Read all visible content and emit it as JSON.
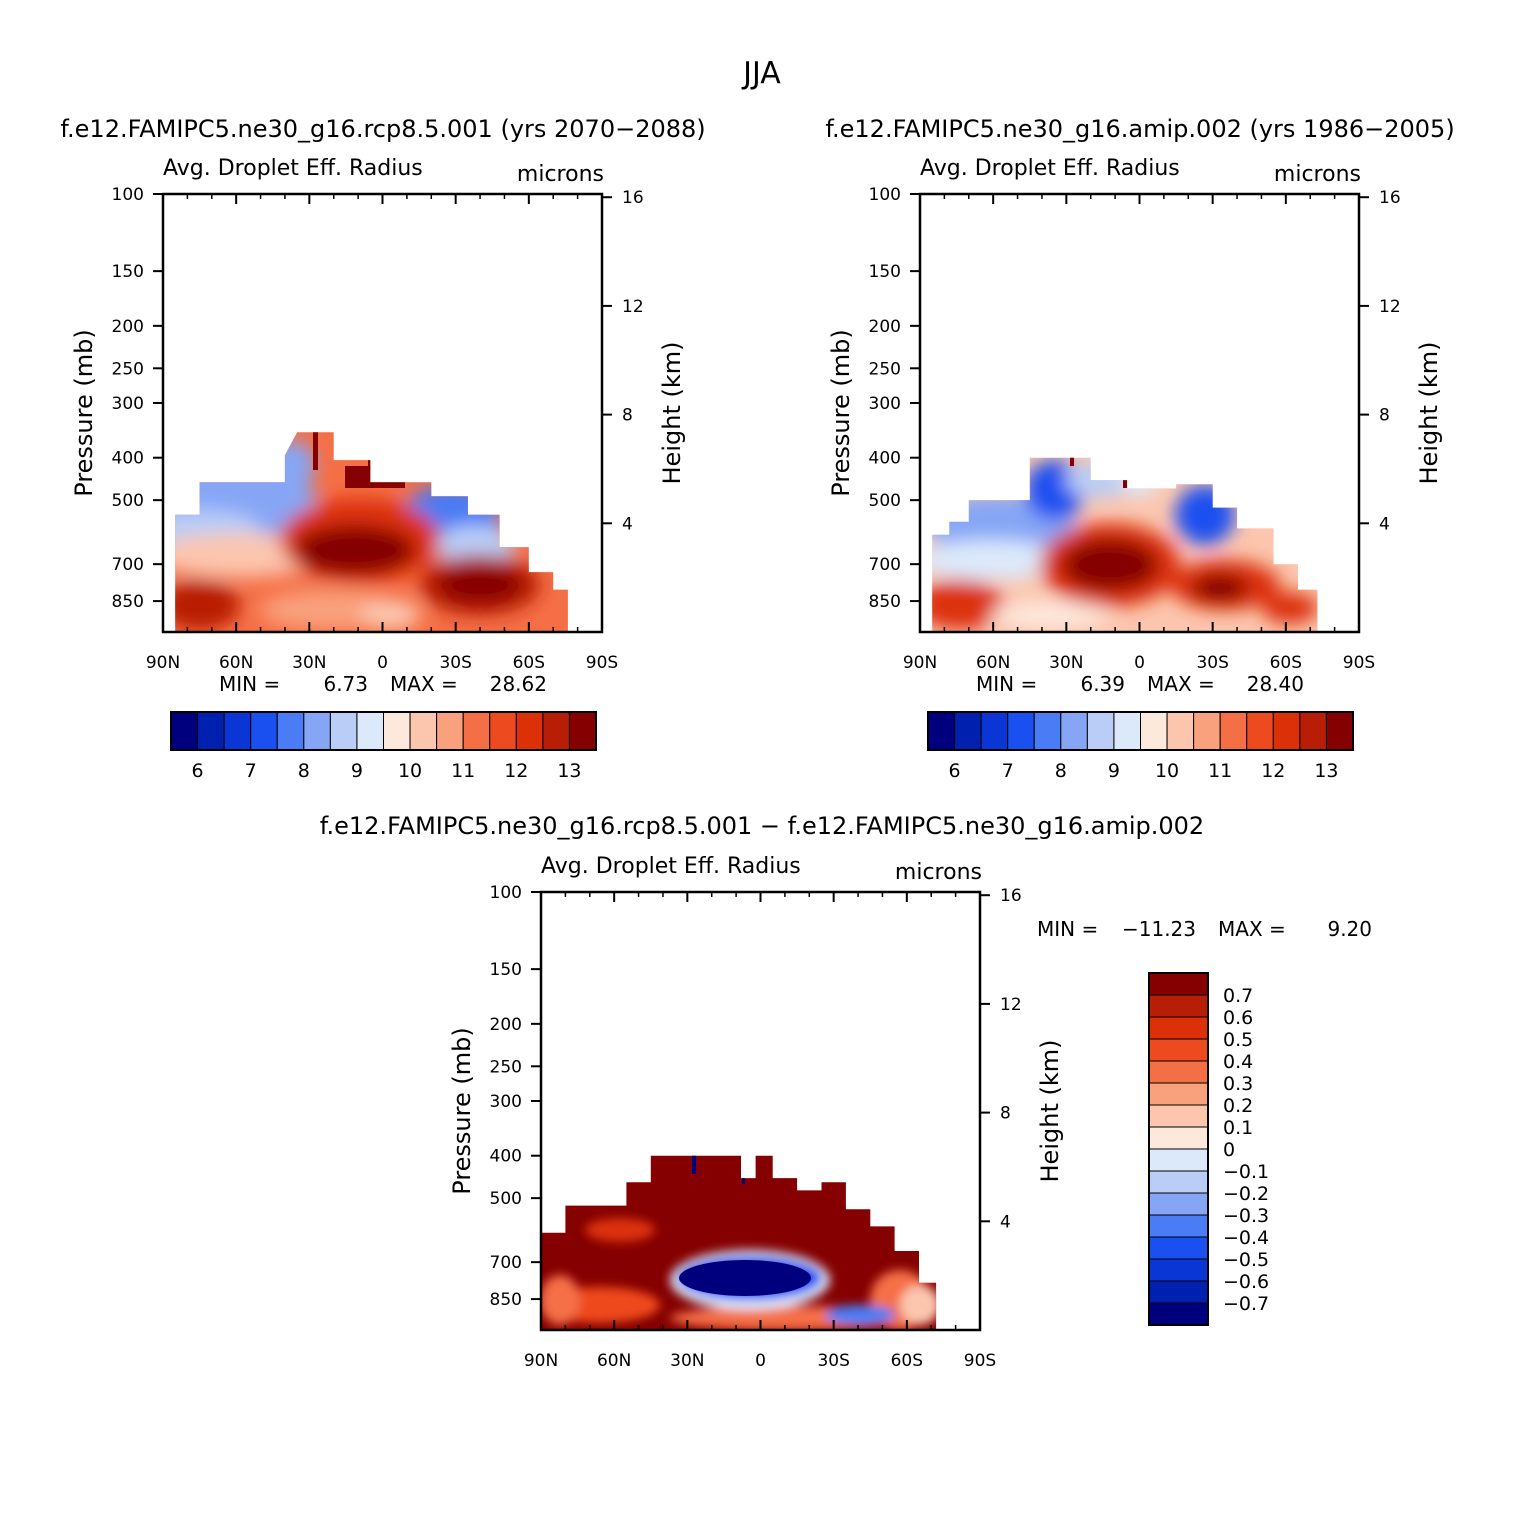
{
  "figure": {
    "title": "JJA",
    "case_label": "f.e12.FAMIPC5.ne30_g16.rcp8.5.001 (yrs 2070−2088)",
    "control_label": "f.e12.FAMIPC5.ne30_g16.amip.002 (yrs 1986−2005)",
    "diff_label": "f.e12.FAMIPC5.ne30_g16.rcp8.5.001 − f.e12.FAMIPC5.ne30_g16.amip.002"
  },
  "common": {
    "variable": "Avg. Droplet Eff. Radius",
    "units": "microns",
    "ylabel": "Pressure (mb)",
    "y2label": "Height (km)",
    "min_label": "MIN =",
    "max_label": "MAX ="
  },
  "colors": {
    "abs_palette": [
      "#00007f",
      "#0020b0",
      "#0a36d6",
      "#1a4ff0",
      "#4a7cf5",
      "#86a6f5",
      "#b9cdf7",
      "#dce9fb",
      "#fde8dc",
      "#fcc6ae",
      "#f9a07d",
      "#f56f46",
      "#ee4a1f",
      "#dc3008",
      "#b81e05",
      "#850000"
    ],
    "diff_palette": [
      "#00007f",
      "#0020b0",
      "#0a36d6",
      "#1a4ff0",
      "#4a7cf5",
      "#86a6f5",
      "#b9cdf7",
      "#dce9fb",
      "#fde8dc",
      "#fcc6ae",
      "#f9a07d",
      "#f56f46",
      "#ee4a1f",
      "#dc3008",
      "#b81e05",
      "#850000"
    ]
  },
  "chart_data": [
    {
      "type": "heatmap",
      "id": "case",
      "title": "f.e12.FAMIPC5.ne30_g16.rcp8.5.001 (yrs 2070−2088)",
      "subtitle": "Avg. Droplet Eff. Radius",
      "units": "microns",
      "x_tick_labels": [
        "90N",
        "60N",
        "30N",
        "0",
        "30S",
        "60S",
        "90S"
      ],
      "x_tick_values": [
        90,
        60,
        30,
        0,
        -30,
        -60,
        -90
      ],
      "xlim": [
        90,
        -90
      ],
      "y_tick_labels": [
        "100",
        "150",
        "200",
        "250",
        "300",
        "400",
        "500",
        "700",
        "850"
      ],
      "y_tick_values": [
        100,
        150,
        200,
        250,
        300,
        400,
        500,
        700,
        850
      ],
      "ylim": [
        100,
        1000
      ],
      "yscale": "log",
      "y2_tick_labels": [
        "16",
        "12",
        "8",
        "4"
      ],
      "y2_tick_values": [
        16,
        12,
        8,
        4
      ],
      "ylabel": "Pressure (mb)",
      "y2label": "Height (km)",
      "min": "6.73",
      "max": "28.62",
      "colorbar_labels": [
        "6",
        "7",
        "8",
        "9",
        "10",
        "11",
        "12",
        "13"
      ],
      "colorbar_levels": [
        5.5,
        6,
        6.5,
        7,
        7.5,
        8,
        8.5,
        9,
        9.5,
        10,
        10.5,
        11,
        11.5,
        12,
        12.5,
        13
      ],
      "data_region": {
        "description": "Field shown between roughly 85N and 75S below the 350-400 mb level; maxima above 13 microns near 700 mb 30N-5S and 850 mb 30S-50S.",
        "top_pressure_by_lat": [
          [
            85,
            590
          ],
          [
            70,
            520
          ],
          [
            40,
            460
          ],
          [
            20,
            350
          ],
          [
            0,
            400
          ],
          [
            -15,
            480
          ],
          [
            -40,
            560
          ],
          [
            -60,
            720
          ],
          [
            -75,
            880
          ]
        ]
      }
    },
    {
      "type": "heatmap",
      "id": "control",
      "title": "f.e12.FAMIPC5.ne30_g16.amip.002 (yrs 1986−2005)",
      "subtitle": "Avg. Droplet Eff. Radius",
      "units": "microns",
      "x_tick_labels": [
        "90N",
        "60N",
        "30N",
        "0",
        "30S",
        "60S",
        "90S"
      ],
      "x_tick_values": [
        90,
        60,
        30,
        0,
        -30,
        -60,
        -90
      ],
      "xlim": [
        90,
        -90
      ],
      "y_tick_labels": [
        "100",
        "150",
        "200",
        "250",
        "300",
        "400",
        "500",
        "700",
        "850"
      ],
      "y_tick_values": [
        100,
        150,
        200,
        250,
        300,
        400,
        500,
        700,
        850
      ],
      "ylim": [
        100,
        1000
      ],
      "yscale": "log",
      "y2_tick_labels": [
        "16",
        "12",
        "8",
        "4"
      ],
      "y2_tick_values": [
        16,
        12,
        8,
        4
      ],
      "ylabel": "Pressure (mb)",
      "y2label": "Height (km)",
      "min": "6.39",
      "max": "28.40",
      "colorbar_labels": [
        "6",
        "7",
        "8",
        "9",
        "10",
        "11",
        "12",
        "13"
      ],
      "colorbar_levels": [
        5.5,
        6,
        6.5,
        7,
        7.5,
        8,
        8.5,
        9,
        9.5,
        10,
        10.5,
        11,
        11.5,
        12,
        12.5,
        13
      ]
    },
    {
      "type": "heatmap",
      "id": "difference",
      "title": "f.e12.FAMIPC5.ne30_g16.rcp8.5.001 − f.e12.FAMIPC5.ne30_g16.amip.002",
      "subtitle": "Avg. Droplet Eff. Radius",
      "units": "microns",
      "x_tick_labels": [
        "90N",
        "60N",
        "30N",
        "0",
        "30S",
        "60S",
        "90S"
      ],
      "x_tick_values": [
        90,
        60,
        30,
        0,
        -30,
        -60,
        -90
      ],
      "xlim": [
        90,
        -90
      ],
      "y_tick_labels": [
        "100",
        "150",
        "200",
        "250",
        "300",
        "400",
        "500",
        "700",
        "850"
      ],
      "y_tick_values": [
        100,
        150,
        200,
        250,
        300,
        400,
        500,
        700,
        850
      ],
      "ylim": [
        100,
        1000
      ],
      "yscale": "log",
      "y2_tick_labels": [
        "16",
        "12",
        "8",
        "4"
      ],
      "y2_tick_values": [
        16,
        12,
        8,
        4
      ],
      "ylabel": "Pressure (mb)",
      "y2label": "Height (km)",
      "min": "−11.23",
      "max": "9.20",
      "colorbar_labels": [
        "0.7",
        "0.6",
        "0.5",
        "0.4",
        "0.3",
        "0.2",
        "0.1",
        "0",
        "−0.1",
        "−0.2",
        "−0.3",
        "−0.4",
        "−0.5",
        "−0.6",
        "−0.7"
      ],
      "colorbar_levels": [
        0.7,
        0.6,
        0.5,
        0.4,
        0.3,
        0.2,
        0.1,
        0,
        -0.1,
        -0.2,
        -0.3,
        -0.4,
        -0.5,
        -0.6,
        -0.7
      ],
      "data_region": {
        "description": "Mostly positive (> 0.7) differences; strong negative (< -0.7) blob near 700 mb between 30N and 15S, weaker negative streak near 850 mb 30S-50S."
      }
    }
  ]
}
